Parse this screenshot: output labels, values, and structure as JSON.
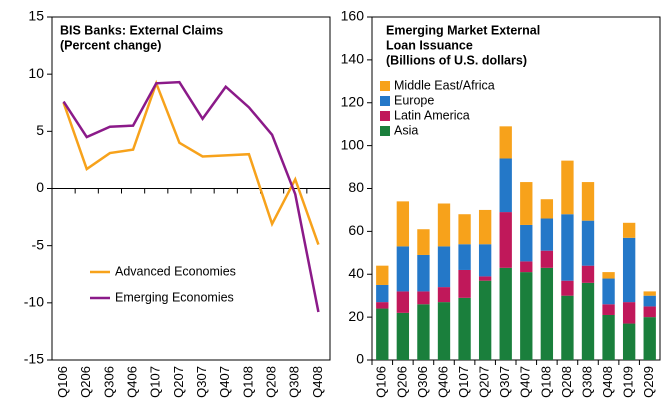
{
  "chart_data": [
    {
      "type": "line",
      "title": "BIS Banks: External Claims",
      "subtitle": "(Percent change)",
      "categories": [
        "Q106",
        "Q206",
        "Q306",
        "Q406",
        "Q107",
        "Q207",
        "Q307",
        "Q407",
        "Q108",
        "Q208",
        "Q308",
        "Q408"
      ],
      "series": [
        {
          "name": "Advanced Economies",
          "color": "#f7a21b",
          "values": [
            7.5,
            1.7,
            3.1,
            3.4,
            9.2,
            4.0,
            2.8,
            2.9,
            3.0,
            -3.1,
            0.8,
            -4.9
          ]
        },
        {
          "name": "Emerging Economies",
          "color": "#8b1a89",
          "values": [
            7.6,
            4.5,
            5.4,
            5.5,
            9.2,
            9.3,
            6.1,
            8.9,
            7.1,
            4.7,
            -0.5,
            -10.8
          ]
        }
      ],
      "ylim": [
        -15,
        15
      ],
      "yticks": [
        -15,
        -10,
        -5,
        0,
        5,
        10,
        15
      ]
    },
    {
      "type": "stacked_bar",
      "title": [
        "Emerging Market External",
        "Loan Issuance"
      ],
      "subtitle": "(Billions of U.S. dollars)",
      "categories": [
        "Q106",
        "Q206",
        "Q306",
        "Q406",
        "Q107",
        "Q207",
        "Q307",
        "Q407",
        "Q108",
        "Q208",
        "Q308",
        "Q408",
        "Q109",
        "Q209"
      ],
      "series": [
        {
          "name": "Asia",
          "color": "#1a7f3c",
          "values": [
            24,
            22,
            26,
            27,
            29,
            37,
            43,
            41,
            43,
            30,
            36,
            21,
            17,
            20
          ]
        },
        {
          "name": "Latin America",
          "color": "#c0185a",
          "values": [
            3,
            10,
            6,
            7,
            13,
            2,
            26,
            5,
            8,
            7,
            8,
            5,
            10,
            5
          ]
        },
        {
          "name": "Europe",
          "color": "#2478c8",
          "values": [
            8,
            21,
            17,
            19,
            12,
            15,
            25,
            17,
            15,
            31,
            21,
            12,
            30,
            5
          ]
        },
        {
          "name": "Middle East/Africa",
          "color": "#f7a21b",
          "values": [
            9,
            21,
            12,
            20,
            14,
            16,
            15,
            20,
            9,
            25,
            18,
            3,
            7,
            2
          ]
        }
      ],
      "ylim": [
        0,
        160
      ],
      "yticks": [
        0,
        20,
        40,
        60,
        80,
        100,
        120,
        140,
        160
      ]
    }
  ]
}
